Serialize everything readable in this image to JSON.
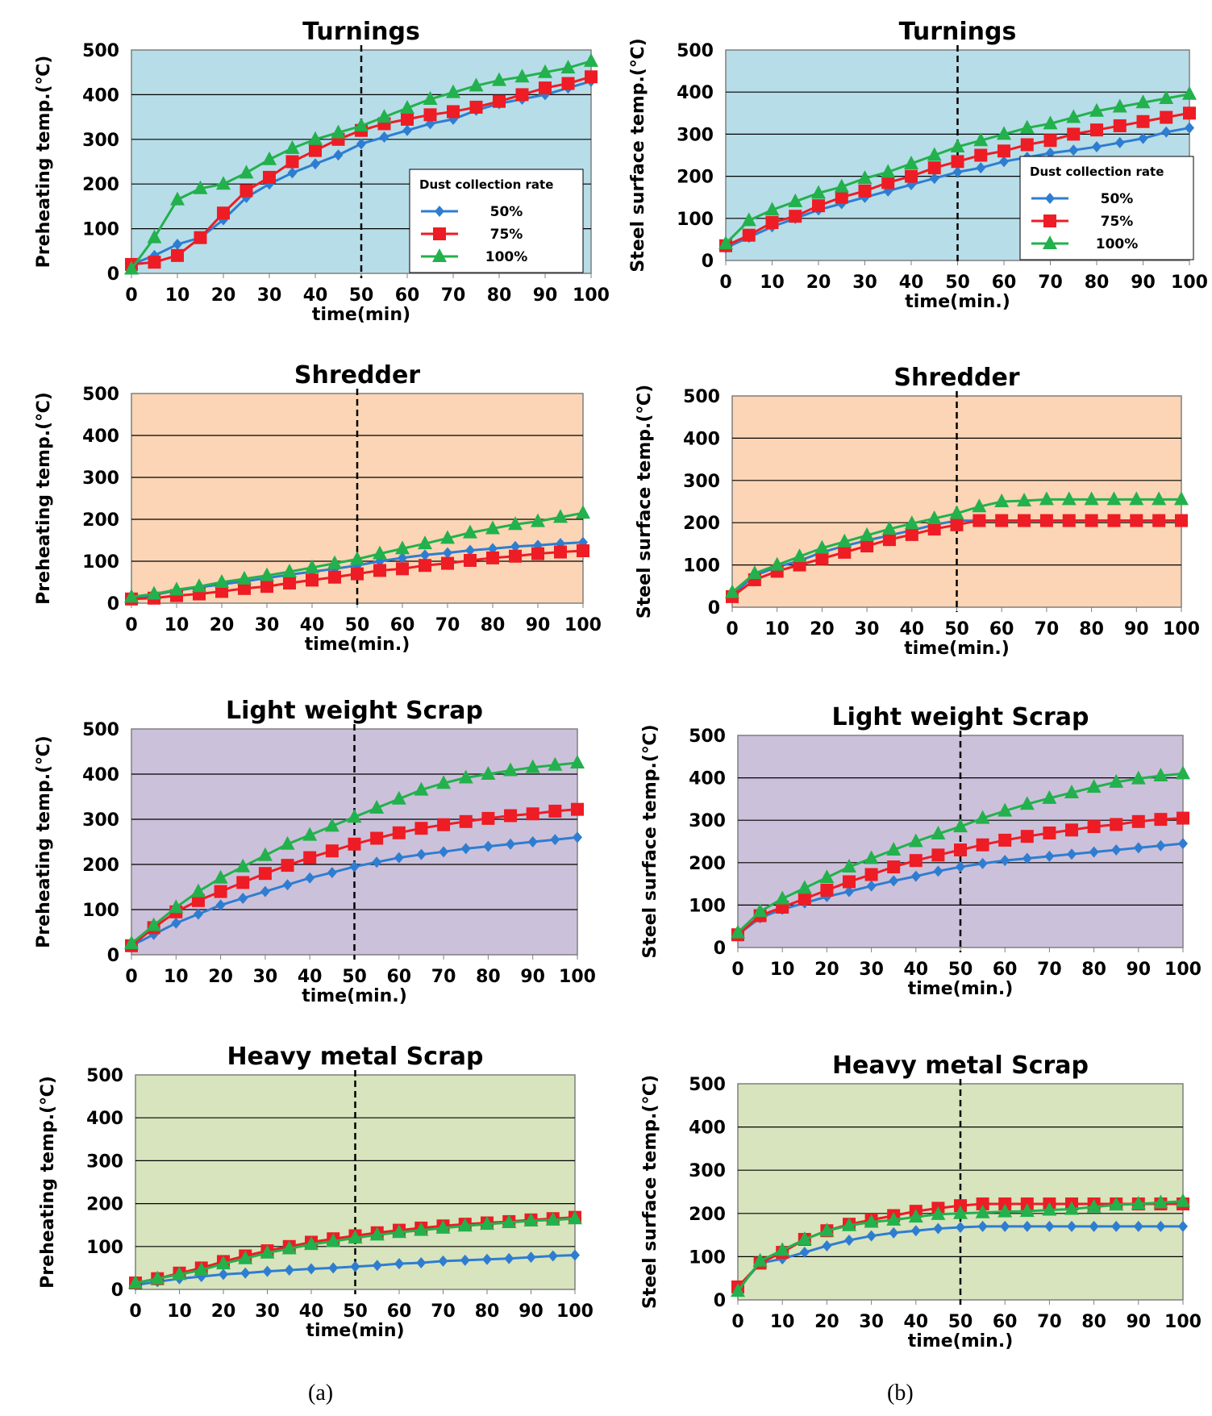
{
  "figure": {
    "captions": [
      "(a)",
      "(b)"
    ]
  },
  "colors": {
    "series": [
      "#2e7dd1",
      "#ee1c24",
      "#22b14c"
    ],
    "backgrounds": {
      "turnings": "#b7dde8",
      "shredder": "#fbd5b5",
      "light": "#ccc1da",
      "heavy": "#d7e4bd"
    }
  },
  "chart_data": [
    {
      "id": "a-turnings",
      "type": "line",
      "title": "Turnings",
      "xlabel": "time(min)",
      "ylabel": "Preheating temp.(℃)",
      "xlim": [
        0,
        100
      ],
      "ylim": [
        0,
        500
      ],
      "background": "turnings",
      "x_ticks": [
        "0",
        "10",
        "20",
        "30",
        "40",
        "50",
        "60",
        "70",
        "80",
        "90",
        "100"
      ],
      "y_ticks": [
        "0",
        "100",
        "200",
        "300",
        "400",
        "500"
      ],
      "vline": 50,
      "grid": true,
      "legend": {
        "title": "Dust collection rate",
        "placement": "right-middle",
        "items": [
          "50%",
          "75%",
          "100%"
        ]
      },
      "x": [
        0,
        5,
        10,
        15,
        20,
        25,
        30,
        35,
        40,
        45,
        50,
        55,
        60,
        65,
        70,
        75,
        80,
        85,
        90,
        95,
        100
      ],
      "series": [
        {
          "name": "50%",
          "marker": "diamond",
          "values": [
            20,
            40,
            65,
            80,
            120,
            170,
            200,
            225,
            245,
            265,
            290,
            305,
            320,
            335,
            345,
            365,
            380,
            390,
            400,
            415,
            430
          ]
        },
        {
          "name": "75%",
          "marker": "square",
          "values": [
            20,
            25,
            40,
            80,
            135,
            185,
            215,
            250,
            275,
            300,
            320,
            335,
            345,
            355,
            362,
            372,
            385,
            400,
            415,
            425,
            440
          ]
        },
        {
          "name": "100%",
          "marker": "triangle",
          "values": [
            10,
            80,
            165,
            190,
            200,
            225,
            255,
            280,
            300,
            315,
            330,
            350,
            370,
            390,
            405,
            420,
            432,
            440,
            450,
            460,
            475
          ]
        }
      ]
    },
    {
      "id": "b-turnings",
      "type": "line",
      "title": "Turnings",
      "xlabel": "time(min.)",
      "ylabel": "Steel surface temp.(℃)",
      "xlim": [
        0,
        100
      ],
      "ylim": [
        0,
        500
      ],
      "background": "turnings",
      "x_ticks": [
        "0",
        "10",
        "20",
        "30",
        "40",
        "50",
        "60",
        "70",
        "80",
        "90",
        "100"
      ],
      "y_ticks": [
        "0",
        "100",
        "200",
        "300",
        "400",
        "500"
      ],
      "vline": 50,
      "grid": true,
      "legend": {
        "title": "Dust collection rate",
        "placement": "right-middle",
        "items": [
          "50%",
          "75%",
          "100%"
        ]
      },
      "x": [
        0,
        5,
        10,
        15,
        20,
        25,
        30,
        35,
        40,
        45,
        50,
        55,
        60,
        65,
        70,
        75,
        80,
        85,
        90,
        95,
        100
      ],
      "series": [
        {
          "name": "50%",
          "marker": "diamond",
          "values": [
            30,
            55,
            80,
            100,
            120,
            135,
            150,
            165,
            180,
            195,
            210,
            220,
            235,
            245,
            255,
            262,
            270,
            280,
            290,
            305,
            315
          ]
        },
        {
          "name": "75%",
          "marker": "square",
          "values": [
            35,
            60,
            90,
            105,
            130,
            150,
            165,
            185,
            200,
            220,
            235,
            250,
            260,
            275,
            285,
            300,
            310,
            320,
            330,
            340,
            350
          ]
        },
        {
          "name": "100%",
          "marker": "triangle",
          "values": [
            40,
            95,
            120,
            140,
            160,
            175,
            195,
            210,
            230,
            250,
            270,
            285,
            300,
            315,
            325,
            340,
            355,
            365,
            375,
            385,
            395
          ]
        }
      ]
    },
    {
      "id": "a-shredder",
      "type": "line",
      "title": "Shredder",
      "xlabel": "time(min.)",
      "ylabel": "Preheating temp.(℃)",
      "xlim": [
        0,
        100
      ],
      "ylim": [
        0,
        500
      ],
      "background": "shredder",
      "x_ticks": [
        "0",
        "10",
        "20",
        "30",
        "40",
        "50",
        "60",
        "70",
        "80",
        "90",
        "100"
      ],
      "y_ticks": [
        "0",
        "100",
        "200",
        "300",
        "400",
        "500"
      ],
      "vline": 50,
      "grid": true,
      "legend": null,
      "x": [
        0,
        5,
        10,
        15,
        20,
        25,
        30,
        35,
        40,
        45,
        50,
        55,
        60,
        65,
        70,
        75,
        80,
        85,
        90,
        95,
        100
      ],
      "series": [
        {
          "name": "50%",
          "marker": "diamond",
          "values": [
            10,
            20,
            30,
            38,
            45,
            52,
            60,
            68,
            75,
            82,
            90,
            100,
            108,
            115,
            120,
            126,
            130,
            135,
            138,
            142,
            145
          ]
        },
        {
          "name": "75%",
          "marker": "square",
          "values": [
            10,
            12,
            18,
            22,
            28,
            35,
            40,
            48,
            55,
            62,
            70,
            78,
            82,
            90,
            95,
            102,
            108,
            112,
            118,
            122,
            125
          ]
        },
        {
          "name": "100%",
          "marker": "triangle",
          "values": [
            15,
            22,
            32,
            40,
            50,
            58,
            66,
            75,
            85,
            95,
            105,
            118,
            130,
            142,
            155,
            168,
            178,
            188,
            195,
            205,
            215
          ]
        }
      ]
    },
    {
      "id": "b-shredder",
      "type": "line",
      "title": "Shredder",
      "xlabel": "time(min.)",
      "ylabel": "Steel surface temp.(℃)",
      "xlim": [
        0,
        100
      ],
      "ylim": [
        0,
        500
      ],
      "background": "shredder",
      "x_ticks": [
        "0",
        "10",
        "20",
        "30",
        "40",
        "50",
        "60",
        "70",
        "80",
        "90",
        "100"
      ],
      "y_ticks": [
        "0",
        "100",
        "200",
        "300",
        "400",
        "500"
      ],
      "vline": 50,
      "grid": true,
      "legend": null,
      "x": [
        0,
        5,
        10,
        15,
        20,
        25,
        30,
        35,
        40,
        45,
        50,
        55,
        60,
        65,
        70,
        75,
        80,
        85,
        90,
        95,
        100
      ],
      "series": [
        {
          "name": "50%",
          "marker": "diamond",
          "values": [
            30,
            75,
            95,
            110,
            130,
            145,
            158,
            170,
            182,
            195,
            205,
            205,
            205,
            205,
            205,
            205,
            205,
            205,
            205,
            205,
            205
          ]
        },
        {
          "name": "75%",
          "marker": "square",
          "values": [
            25,
            65,
            85,
            100,
            115,
            130,
            145,
            160,
            172,
            185,
            195,
            205,
            205,
            205,
            205,
            205,
            205,
            205,
            205,
            205,
            205
          ]
        },
        {
          "name": "100%",
          "marker": "triangle",
          "values": [
            35,
            80,
            100,
            120,
            140,
            155,
            170,
            185,
            198,
            210,
            222,
            238,
            250,
            252,
            255,
            255,
            255,
            255,
            255,
            255,
            255
          ]
        }
      ]
    },
    {
      "id": "a-light",
      "type": "line",
      "title": "Light weight Scrap",
      "xlabel": "time(min.)",
      "ylabel": "Preheating temp.(℃)",
      "xlim": [
        0,
        100
      ],
      "ylim": [
        0,
        500
      ],
      "background": "light",
      "x_ticks": [
        "0",
        "10",
        "20",
        "30",
        "40",
        "50",
        "60",
        "70",
        "80",
        "90",
        "100"
      ],
      "y_ticks": [
        "0",
        "100",
        "200",
        "300",
        "400",
        "500"
      ],
      "vline": 50,
      "grid": true,
      "legend": null,
      "x": [
        0,
        5,
        10,
        15,
        20,
        25,
        30,
        35,
        40,
        45,
        50,
        55,
        60,
        65,
        70,
        75,
        80,
        85,
        90,
        95,
        100
      ],
      "series": [
        {
          "name": "50%",
          "marker": "diamond",
          "values": [
            20,
            45,
            70,
            90,
            110,
            125,
            140,
            155,
            170,
            182,
            195,
            205,
            215,
            222,
            228,
            235,
            240,
            245,
            250,
            255,
            260
          ]
        },
        {
          "name": "75%",
          "marker": "square",
          "values": [
            20,
            60,
            95,
            120,
            140,
            160,
            180,
            198,
            215,
            230,
            245,
            258,
            270,
            280,
            288,
            295,
            302,
            308,
            312,
            318,
            322
          ]
        },
        {
          "name": "100%",
          "marker": "triangle",
          "values": [
            25,
            65,
            105,
            140,
            170,
            195,
            220,
            245,
            265,
            285,
            305,
            325,
            345,
            365,
            380,
            392,
            400,
            408,
            415,
            420,
            425
          ]
        }
      ]
    },
    {
      "id": "b-light",
      "type": "line",
      "title": "Light weight Scrap",
      "xlabel": "time(min.)",
      "ylabel": "Steel surface temp.(℃)",
      "xlim": [
        0,
        100
      ],
      "ylim": [
        0,
        500
      ],
      "background": "light",
      "x_ticks": [
        "0",
        "10",
        "20",
        "30",
        "40",
        "50",
        "60",
        "70",
        "80",
        "90",
        "100"
      ],
      "y_ticks": [
        "0",
        "100",
        "200",
        "300",
        "400",
        "500"
      ],
      "vline": 50,
      "grid": true,
      "legend": null,
      "x": [
        0,
        5,
        10,
        15,
        20,
        25,
        30,
        35,
        40,
        45,
        50,
        55,
        60,
        65,
        70,
        75,
        80,
        85,
        90,
        95,
        100
      ],
      "series": [
        {
          "name": "50%",
          "marker": "diamond",
          "values": [
            30,
            70,
            90,
            105,
            120,
            132,
            145,
            157,
            168,
            180,
            190,
            198,
            205,
            210,
            215,
            220,
            225,
            230,
            235,
            240,
            245
          ]
        },
        {
          "name": "75%",
          "marker": "square",
          "values": [
            30,
            75,
            95,
            115,
            135,
            155,
            172,
            190,
            205,
            218,
            230,
            242,
            253,
            262,
            270,
            277,
            285,
            290,
            297,
            302,
            305
          ]
        },
        {
          "name": "100%",
          "marker": "triangle",
          "values": [
            35,
            85,
            115,
            140,
            165,
            190,
            210,
            230,
            250,
            268,
            285,
            305,
            322,
            338,
            352,
            365,
            378,
            390,
            398,
            405,
            410
          ]
        }
      ]
    },
    {
      "id": "a-heavy",
      "type": "line",
      "title": "Heavy metal Scrap",
      "xlabel": "time(min)",
      "ylabel": "Preheating temp.(℃)",
      "xlim": [
        0,
        100
      ],
      "ylim": [
        0,
        500
      ],
      "background": "heavy",
      "x_ticks": [
        "0",
        "10",
        "20",
        "30",
        "40",
        "50",
        "60",
        "70",
        "80",
        "90",
        "100"
      ],
      "y_ticks": [
        "0",
        "100",
        "200",
        "300",
        "400",
        "500"
      ],
      "vline": 50,
      "grid": true,
      "legend": null,
      "x": [
        0,
        5,
        10,
        15,
        20,
        25,
        30,
        35,
        40,
        45,
        50,
        55,
        60,
        65,
        70,
        75,
        80,
        85,
        90,
        95,
        100
      ],
      "series": [
        {
          "name": "50%",
          "marker": "diamond",
          "values": [
            10,
            18,
            25,
            30,
            35,
            38,
            42,
            45,
            48,
            50,
            53,
            56,
            60,
            62,
            66,
            68,
            70,
            72,
            75,
            78,
            80
          ]
        },
        {
          "name": "75%",
          "marker": "square",
          "values": [
            15,
            25,
            38,
            50,
            65,
            78,
            90,
            100,
            110,
            118,
            125,
            132,
            138,
            143,
            148,
            152,
            155,
            158,
            162,
            165,
            168
          ]
        },
        {
          "name": "100%",
          "marker": "triangle",
          "values": [
            15,
            25,
            35,
            45,
            60,
            72,
            85,
            95,
            105,
            112,
            120,
            127,
            133,
            138,
            143,
            148,
            152,
            156,
            160,
            162,
            165
          ]
        }
      ]
    },
    {
      "id": "b-heavy",
      "type": "line",
      "title": "Heavy metal Scrap",
      "xlabel": "time(min.)",
      "ylabel": "Steel surface temp.(℃)",
      "xlim": [
        0,
        100
      ],
      "ylim": [
        0,
        500
      ],
      "background": "heavy",
      "x_ticks": [
        "0",
        "10",
        "20",
        "30",
        "40",
        "50",
        "60",
        "70",
        "80",
        "90",
        "100"
      ],
      "y_ticks": [
        "0",
        "100",
        "200",
        "300",
        "400",
        "500"
      ],
      "vline": 50,
      "grid": true,
      "legend": null,
      "x": [
        0,
        5,
        10,
        15,
        20,
        25,
        30,
        35,
        40,
        45,
        50,
        55,
        60,
        65,
        70,
        75,
        80,
        85,
        90,
        95,
        100
      ],
      "series": [
        {
          "name": "50%",
          "marker": "diamond",
          "values": [
            25,
            85,
            95,
            110,
            125,
            138,
            148,
            155,
            160,
            165,
            168,
            170,
            170,
            170,
            170,
            170,
            170,
            170,
            170,
            170,
            170
          ]
        },
        {
          "name": "75%",
          "marker": "square",
          "values": [
            30,
            85,
            110,
            140,
            160,
            175,
            185,
            195,
            205,
            212,
            218,
            222,
            222,
            222,
            222,
            222,
            222,
            222,
            222,
            222,
            222
          ]
        },
        {
          "name": "100%",
          "marker": "triangle",
          "values": [
            20,
            90,
            115,
            140,
            160,
            172,
            180,
            185,
            192,
            198,
            200,
            202,
            204,
            205,
            208,
            210,
            215,
            220,
            222,
            225,
            228
          ]
        }
      ]
    }
  ]
}
